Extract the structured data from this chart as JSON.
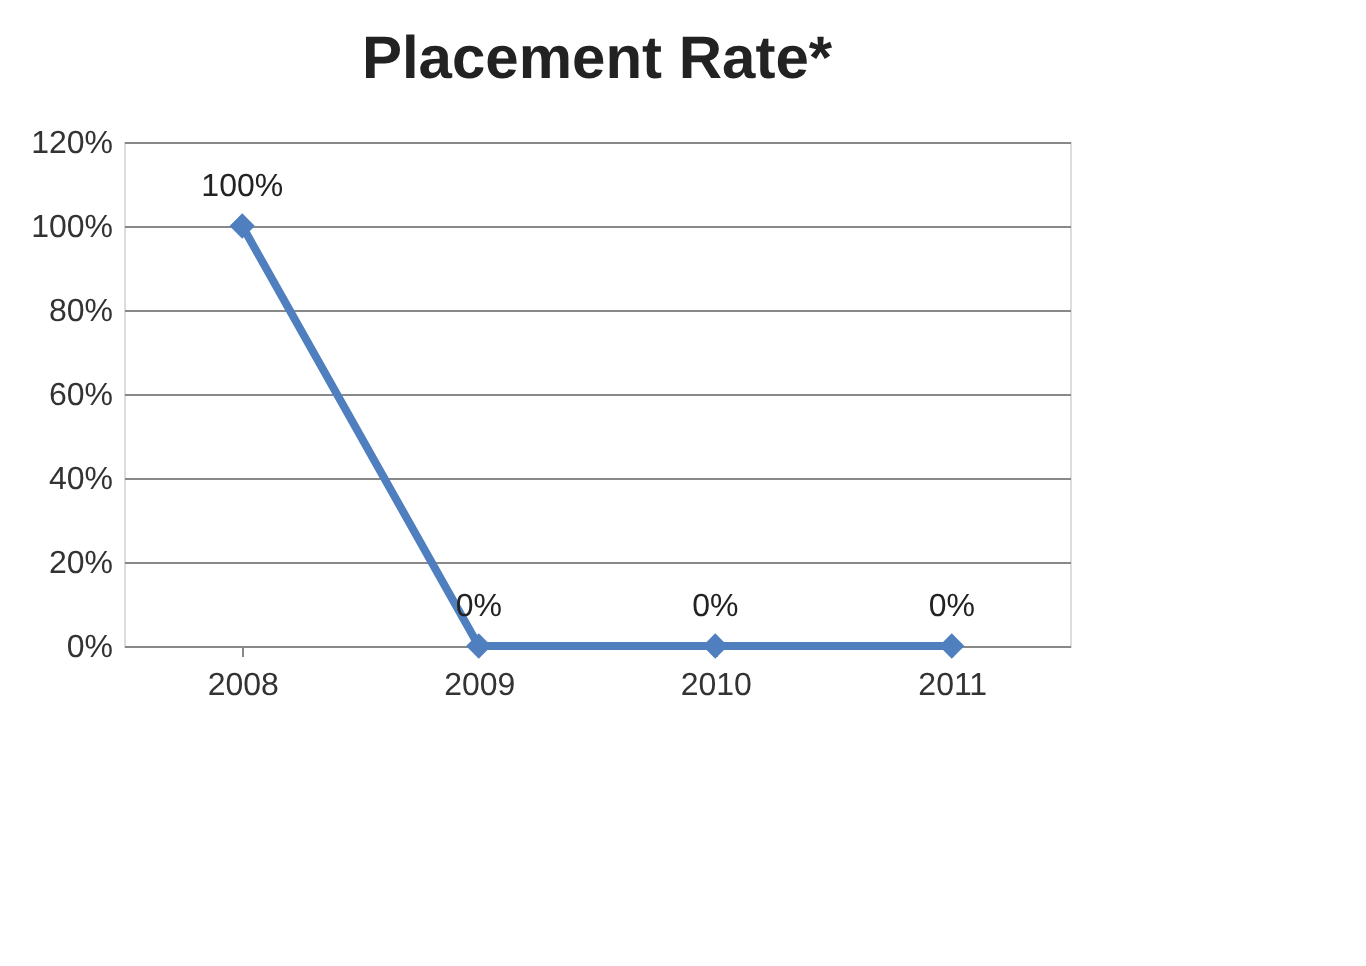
{
  "chart_data": {
    "type": "line",
    "title": "Placement Rate*",
    "categories": [
      "2008",
      "2009",
      "2010",
      "2011"
    ],
    "series": [
      {
        "color": "#4f7fbe",
        "values": [
          100,
          0,
          0,
          0
        ],
        "value_labels": [
          "100%",
          "0%",
          "0%",
          "0%"
        ]
      }
    ],
    "ylim": [
      0,
      120
    ],
    "yticks": [
      {
        "value": 0,
        "label": "0%"
      },
      {
        "value": 20,
        "label": "20%"
      },
      {
        "value": 40,
        "label": "40%"
      },
      {
        "value": 60,
        "label": "60%"
      },
      {
        "value": 80,
        "label": "80%"
      },
      {
        "value": 100,
        "label": "100%"
      },
      {
        "value": 120,
        "label": "120%"
      }
    ],
    "grid": "y",
    "marker": "diamond",
    "line_style": "solid"
  }
}
